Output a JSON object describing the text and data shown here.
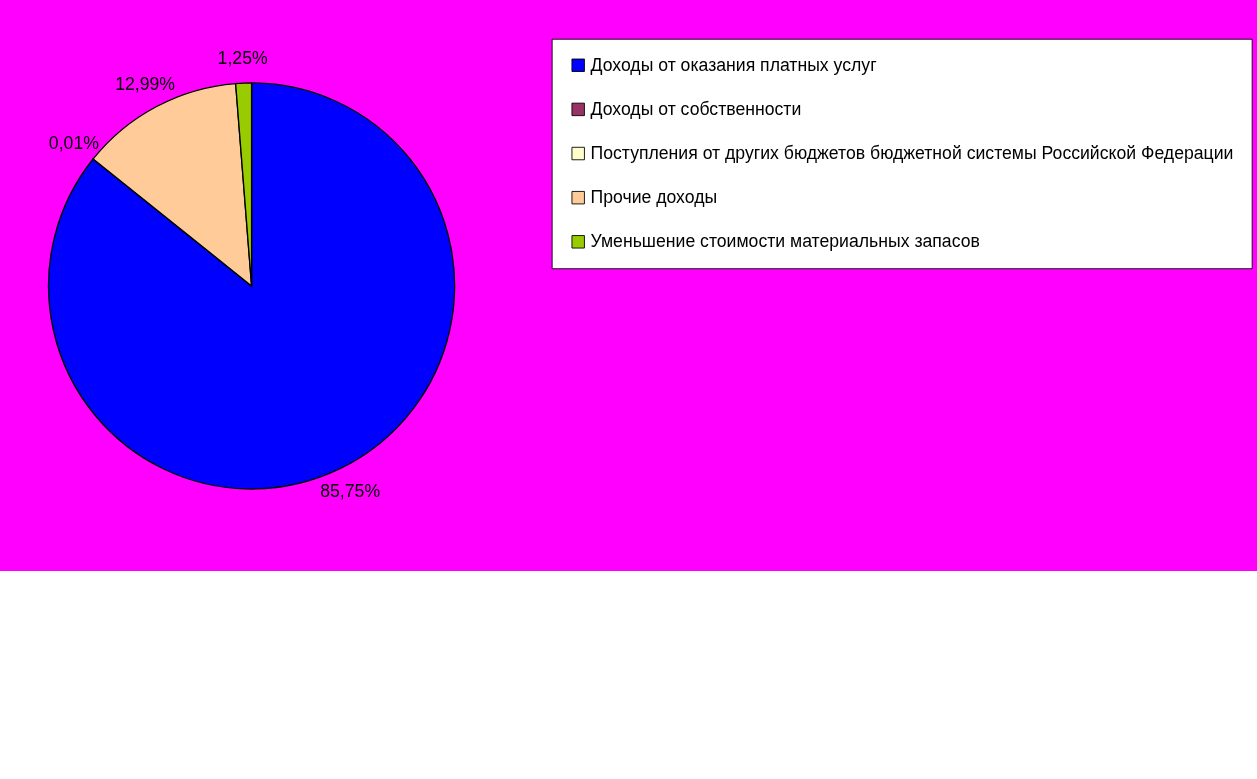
{
  "chart_data": {
    "type": "pie",
    "categories": [
      "Доходы от оказания платных услуг",
      "Доходы от собственности",
      "Поступления от других бюджетов бюджетной системы Российской Федерации",
      "Прочие доходы",
      "Уменьшение стоимости материальных запасов"
    ],
    "values": [
      85.75,
      0.01,
      0,
      12.99,
      1.25
    ],
    "colors": [
      "#0000ff",
      "#993366",
      "#ffffcc",
      "#ffcc99",
      "#99cc00"
    ],
    "value_labels": [
      "85,75%",
      "0,01%",
      null,
      "12,99%",
      "1,25%"
    ],
    "legend": "right"
  }
}
